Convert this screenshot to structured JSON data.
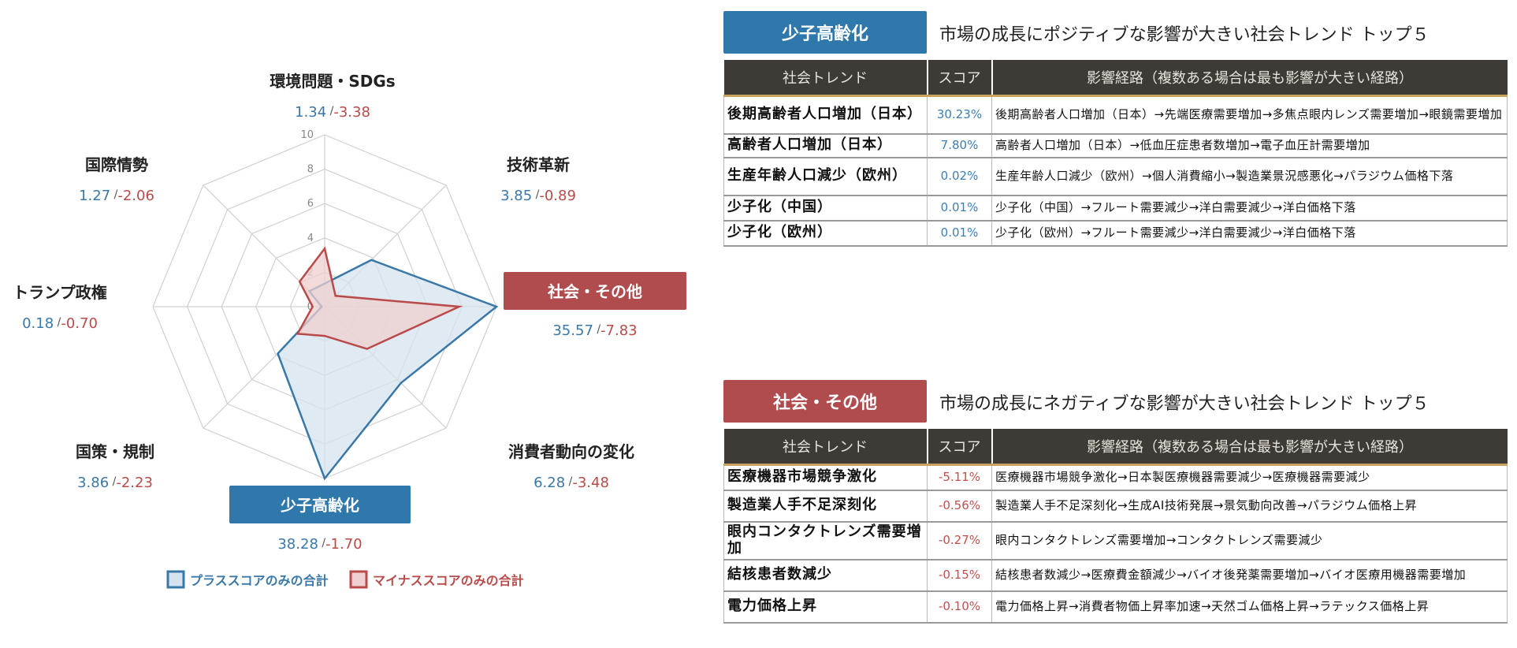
{
  "chart_data": {
    "type": "radar",
    "rmax": 10,
    "ticks": [
      "0",
      "2",
      "4",
      "6",
      "8",
      "10"
    ],
    "categories": [
      {
        "label": "環境問題・SDGs",
        "plus": "1.34",
        "minus": "-3.38",
        "plus_value": 1.34,
        "minus_value": 3.38,
        "highlight": ""
      },
      {
        "label": "技術革新",
        "plus": "3.85",
        "minus": "-0.89",
        "plus_value": 3.85,
        "minus_value": 0.89,
        "highlight": ""
      },
      {
        "label": "社会・その他",
        "plus": "35.57",
        "minus": "-7.83",
        "plus_value": 35.57,
        "minus_value": 7.83,
        "highlight": "red"
      },
      {
        "label": "消費者動向の変化",
        "plus": "6.28",
        "minus": "-3.48",
        "plus_value": 6.28,
        "minus_value": 3.48,
        "highlight": ""
      },
      {
        "label": "少子高齢化",
        "plus": "38.28",
        "minus": "-1.70",
        "plus_value": 38.28,
        "minus_value": 1.7,
        "highlight": "blue"
      },
      {
        "label": "国策・規制",
        "plus": "3.86",
        "minus": "-2.23",
        "plus_value": 3.86,
        "minus_value": 2.23,
        "highlight": ""
      },
      {
        "label": "トランプ政権",
        "plus": "0.18",
        "minus": "-0.70",
        "plus_value": 0.18,
        "minus_value": 0.7,
        "highlight": ""
      },
      {
        "label": "国際情勢",
        "plus": "1.27",
        "minus": "-2.06",
        "plus_value": 1.27,
        "minus_value": 2.06,
        "highlight": ""
      }
    ],
    "series": [
      {
        "name": "プラススコアのみの合計",
        "color": "#3a78a8",
        "fill": "#d6e3ee"
      },
      {
        "name": "マイナススコアのみの合計",
        "color": "#b94a4a",
        "fill": "#efcfcf"
      }
    ]
  },
  "tables": {
    "positive": {
      "tag": "少子高齢化",
      "heading": "市場の成長にポジティブな影響が大きい社会トレンド トップ５",
      "headers": [
        "社会トレンド",
        "スコア",
        "影響経路（複数ある場合は最も影響が大きい経路）"
      ],
      "rows": [
        {
          "trend": "後期高齢者人口増加（日本）",
          "score": "30.23%",
          "path": "後期高齢者人口増加（日本）→先端医療需要増加→多焦点眼内レンズ需要増加→眼鏡需要増加"
        },
        {
          "trend": "高齢者人口増加（日本）",
          "score": "7.80%",
          "path": "高齢者人口増加（日本）→低血圧症患者数増加→電子血圧計需要増加"
        },
        {
          "trend": "生産年齢人口減少（欧州）",
          "score": "0.02%",
          "path": "生産年齢人口減少（欧州）→個人消費縮小→製造業景況感悪化→パラジウム価格下落"
        },
        {
          "trend": "少子化（中国）",
          "score": "0.01%",
          "path": "少子化（中国）→フルート需要減少→洋白需要減少→洋白価格下落"
        },
        {
          "trend": "少子化（欧州）",
          "score": "0.01%",
          "path": "少子化（欧州）→フルート需要減少→洋白需要減少→洋白価格下落"
        }
      ]
    },
    "negative": {
      "tag": "社会・その他",
      "heading": "市場の成長にネガティブな影響が大きい社会トレンド トップ５",
      "headers": [
        "社会トレンド",
        "スコア",
        "影響経路（複数ある場合は最も影響が大きい経路）"
      ],
      "rows": [
        {
          "trend": "医療機器市場競争激化",
          "score": "-5.11%",
          "path": "医療機器市場競争激化→日本製医療機器需要減少→医療機器需要減少"
        },
        {
          "trend": "製造業人手不足深刻化",
          "score": "-0.56%",
          "path": "製造業人手不足深刻化→生成AI技術発展→景気動向改善→パラジウム価格上昇"
        },
        {
          "trend": "眼内コンタクトレンズ需要増加",
          "score": "-0.27%",
          "path": "眼内コンタクトレンズ需要増加→コンタクトレンズ需要減少"
        },
        {
          "trend": "結核患者数減少",
          "score": "-0.15%",
          "path": "結核患者数減少→医療費金額減少→バイオ後発薬需要増加→バイオ医療用機器需要増加"
        },
        {
          "trend": "電力価格上昇",
          "score": "-0.10%",
          "path": "電力価格上昇→消費者物価上昇率加速→天然ゴム価格上昇→ラテックス価格上昇"
        }
      ]
    }
  }
}
